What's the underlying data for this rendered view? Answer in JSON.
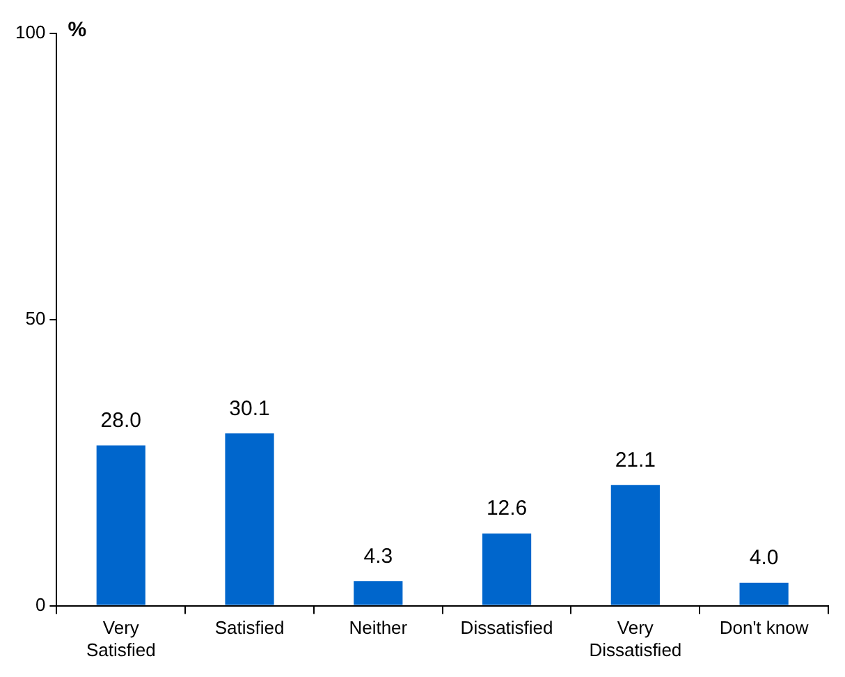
{
  "chart_data": {
    "type": "bar",
    "ylabel": "%",
    "categories": [
      "Very Satisfied",
      "Satisfied",
      "Neither",
      "Dissatisfied",
      "Very Dissatisfied",
      "Don't know"
    ],
    "values": [
      28.0,
      30.1,
      4.3,
      12.6,
      21.1,
      4.0
    ],
    "value_labels": [
      "28.0",
      "30.1",
      "4.3",
      "12.6",
      "21.1",
      "4.0"
    ],
    "color": "#0066cc",
    "ylim": [
      0,
      100
    ],
    "yticks": [
      0,
      50,
      100
    ]
  }
}
